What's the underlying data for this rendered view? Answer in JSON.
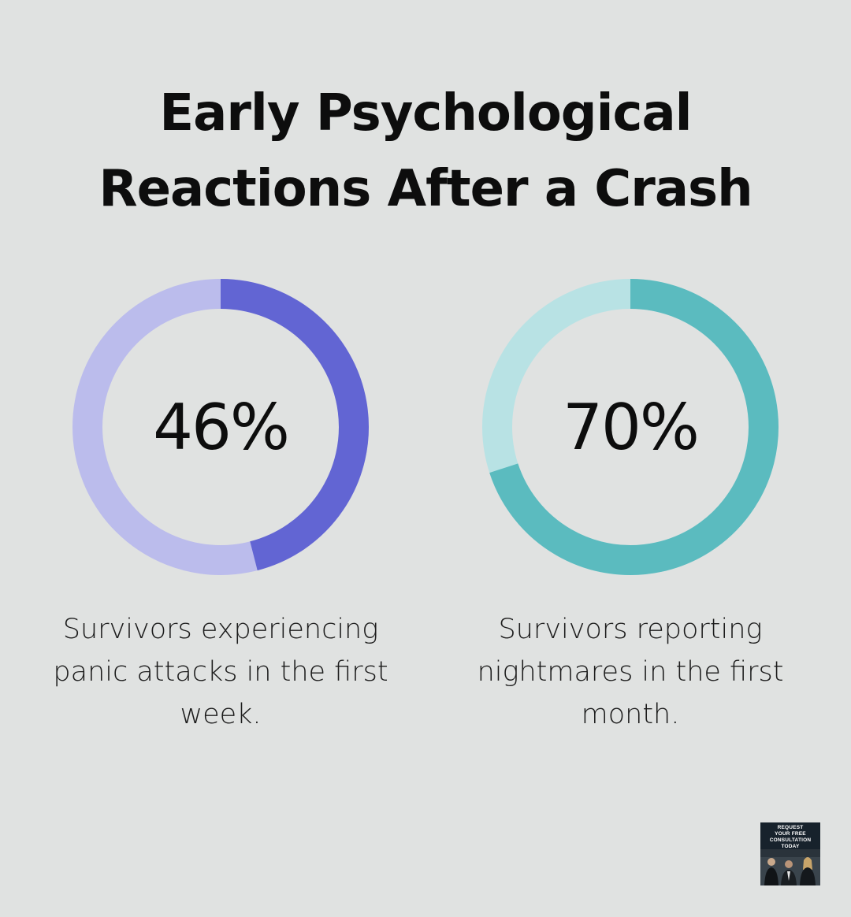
{
  "title_lines": [
    "Early Psychological",
    "Reactions After a Crash"
  ],
  "chart_data": [
    {
      "type": "pie",
      "variant": "donut",
      "value_percent": 46,
      "label": "46%",
      "caption": "Survivors experiencing panic attacks in the first week.",
      "colors": {
        "filled": "#6265d3",
        "remaining": "#bbbcec"
      }
    },
    {
      "type": "pie",
      "variant": "donut",
      "value_percent": 70,
      "label": "70%",
      "caption": "Survivors reporting nightmares in the first month.",
      "colors": {
        "filled": "#5bbbbf",
        "remaining": "#b8e2e4"
      }
    }
  ],
  "promo": {
    "lines": [
      "REQUEST",
      "YOUR FREE",
      "CONSULTATION",
      "TODAY"
    ],
    "background": "#17222c",
    "image_icon": "people-photo-icon"
  }
}
